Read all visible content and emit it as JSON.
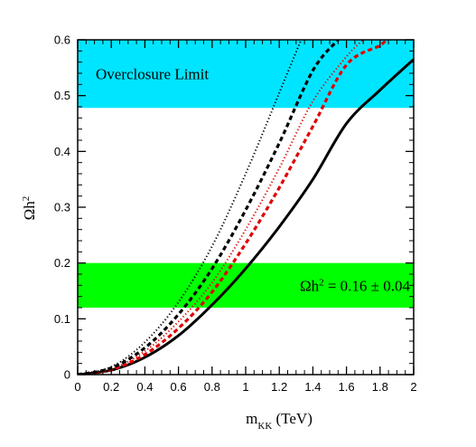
{
  "chart_data": {
    "type": "line",
    "xlabel": {
      "main": "m",
      "sub": "KK",
      "rest": " (TeV)"
    },
    "ylabel": {
      "main": "Ωh",
      "sup": "2"
    },
    "xlim": [
      0,
      2
    ],
    "ylim": [
      0,
      0.6
    ],
    "xticks": [
      "0",
      "0.2",
      "0.4",
      "0.6",
      "0.8",
      "1",
      "1.2",
      "1.4",
      "1.6",
      "1.8",
      "2"
    ],
    "yticks": [
      "0",
      "0.1",
      "0.2",
      "0.3",
      "0.4",
      "0.5",
      "0.6"
    ],
    "grid": false,
    "bands": [
      {
        "label": "Overclosure Limit",
        "y": [
          0.478,
          0.6
        ],
        "color": "#00e5ff",
        "label_position": "left"
      },
      {
        "label": "Ωh² = 0.16 ± 0.04",
        "label_main": "Ωh",
        "label_sup": "2",
        "label_rest": " = 0.16 ± 0.04",
        "y": [
          0.12,
          0.2
        ],
        "color": "#00ff00",
        "label_position": "right"
      }
    ],
    "series": [
      {
        "color": "#000000",
        "style": "solid",
        "x": [
          0,
          0.2,
          0.4,
          0.6,
          0.8,
          1.0,
          1.2,
          1.4,
          1.6,
          1.8,
          2.0
        ],
        "y": [
          0,
          0.008,
          0.031,
          0.07,
          0.125,
          0.19,
          0.265,
          0.35,
          0.45,
          0.51,
          0.565
        ]
      },
      {
        "color": "#e00000",
        "style": "dashed",
        "x": [
          0,
          0.2,
          0.4,
          0.6,
          0.8,
          1.0,
          1.2,
          1.4,
          1.6,
          1.8,
          1.83
        ],
        "y": [
          0,
          0.009,
          0.036,
          0.083,
          0.148,
          0.235,
          0.335,
          0.445,
          0.555,
          0.59,
          0.6
        ]
      },
      {
        "color": "#e00000",
        "style": "dotted",
        "x": [
          0,
          0.2,
          0.4,
          0.6,
          0.8,
          1.0,
          1.2,
          1.4,
          1.6,
          1.7
        ],
        "y": [
          0,
          0.01,
          0.042,
          0.095,
          0.165,
          0.26,
          0.37,
          0.49,
          0.57,
          0.6
        ]
      },
      {
        "color": "#000000",
        "style": "dashed",
        "x": [
          0,
          0.2,
          0.4,
          0.6,
          0.8,
          1.0,
          1.2,
          1.4,
          1.55
        ],
        "y": [
          0,
          0.012,
          0.048,
          0.108,
          0.19,
          0.295,
          0.415,
          0.545,
          0.6
        ]
      },
      {
        "color": "#000000",
        "style": "dotted",
        "x": [
          0,
          0.2,
          0.4,
          0.6,
          0.8,
          1.0,
          1.2,
          1.33
        ],
        "y": [
          0,
          0.014,
          0.058,
          0.13,
          0.23,
          0.36,
          0.505,
          0.6
        ]
      }
    ]
  }
}
